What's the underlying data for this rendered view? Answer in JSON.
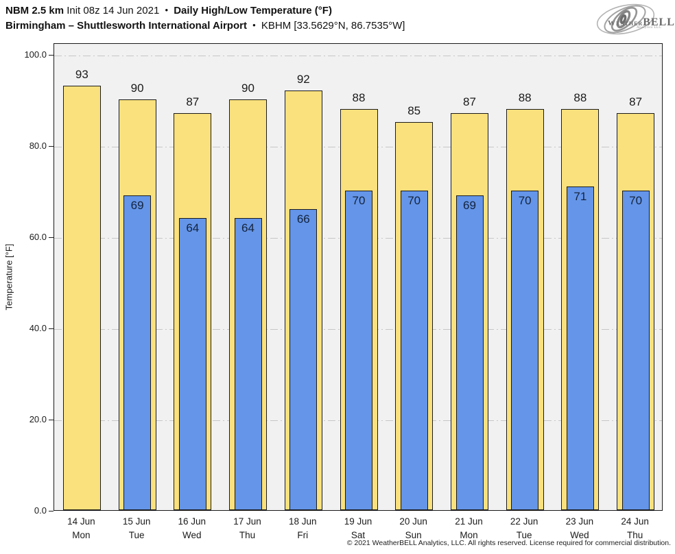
{
  "header": {
    "model": "NBM 2.5 km",
    "init": "Init 08z 14 Jun 2021",
    "bullet": "•",
    "product": "Daily High/Low Temperature (°F)",
    "station_name": "Birmingham – Shuttlesworth International Airport",
    "station_meta": "KBHM [33.5629°N, 86.7535°W]"
  },
  "logo": {
    "weather": "Weather",
    "bell": "BELL",
    "sub": "Analytics LLC"
  },
  "chart_data": {
    "type": "bar",
    "title": "NBM 2.5 km Init 08z 14 Jun 2021 • Daily High/Low Temperature (°F)",
    "subtitle": "Birmingham – Shuttlesworth International Airport • KBHM [33.5629°N, 86.7535°W]",
    "ylabel": "Temperature [°F]",
    "xlabel": "",
    "ylim": [
      0,
      102.5
    ],
    "yticks": [
      0,
      20,
      40,
      60,
      80,
      100
    ],
    "ytick_labels": [
      "0.0",
      "20.0",
      "40.0",
      "60.0",
      "80.0",
      "100.0"
    ],
    "grid": "horizontal dash-dot lines at y ticks",
    "legend_position": "none",
    "categories": [
      "14 Jun",
      "15 Jun",
      "16 Jun",
      "17 Jun",
      "18 Jun",
      "19 Jun",
      "20 Jun",
      "21 Jun",
      "22 Jun",
      "23 Jun",
      "24 Jun"
    ],
    "weekdays": [
      "Mon",
      "Tue",
      "Wed",
      "Thu",
      "Fri",
      "Sat",
      "Sun",
      "Mon",
      "Tue",
      "Wed",
      "Thu"
    ],
    "series": [
      {
        "name": "Daily High",
        "color": "#FAE17D",
        "values": [
          93,
          90,
          87,
          90,
          92,
          88,
          85,
          87,
          88,
          88,
          87
        ]
      },
      {
        "name": "Daily Low",
        "color": "#6495E8",
        "values": [
          null,
          69,
          64,
          64,
          66,
          70,
          70,
          69,
          70,
          71,
          70
        ]
      }
    ]
  },
  "colors": {
    "plot_bg": "#f1f1f1",
    "grid": "#c8c8c8",
    "bar_border": "#1a1a1a",
    "high_fill": "#FAE17D",
    "low_fill": "#6495E8"
  },
  "footer": {
    "copyright": "© 2021 WeatherBELL Analytics, LLC. All rights reserved. License required for commercial distribution."
  }
}
